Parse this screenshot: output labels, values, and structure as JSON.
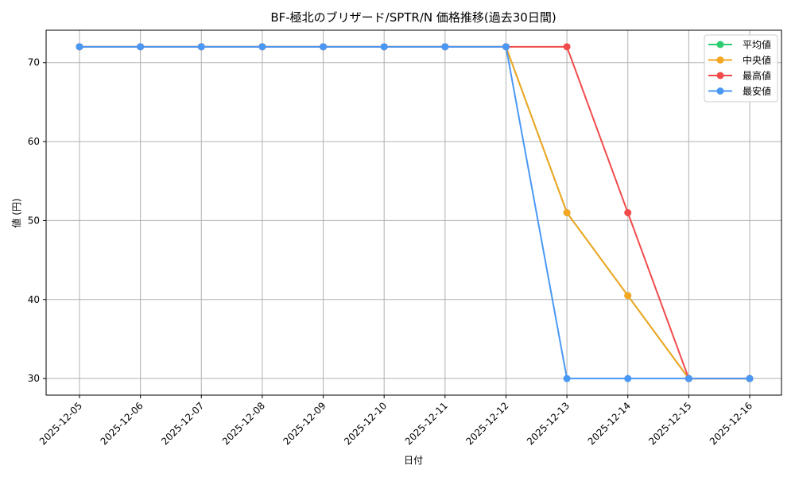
{
  "chart_data": {
    "type": "line",
    "title": "BF-極北のブリザード/SPTR/N 価格推移(過去30日間)",
    "xlabel": "日付",
    "ylabel": "値 (円)",
    "x": [
      "2025-12-05",
      "2025-12-06",
      "2025-12-07",
      "2025-12-08",
      "2025-12-09",
      "2025-12-10",
      "2025-12-11",
      "2025-12-12",
      "2025-12-13",
      "2025-12-14",
      "2025-12-15",
      "2025-12-16"
    ],
    "series": [
      {
        "name": "平均値",
        "color": "#2ecc71",
        "values": [
          72,
          72,
          72,
          72,
          72,
          72,
          72,
          72,
          51,
          40.5,
          30,
          30
        ]
      },
      {
        "name": "中央値",
        "color": "#f5a623",
        "values": [
          72,
          72,
          72,
          72,
          72,
          72,
          72,
          72,
          51,
          40.5,
          30,
          30
        ]
      },
      {
        "name": "最高値",
        "color": "#f24b4b",
        "values": [
          72,
          72,
          72,
          72,
          72,
          72,
          72,
          72,
          72,
          51,
          30,
          30
        ]
      },
      {
        "name": "最安値",
        "color": "#4a98f5",
        "values": [
          72,
          72,
          72,
          72,
          72,
          72,
          72,
          72,
          30,
          30,
          30,
          30
        ]
      }
    ],
    "yticks": [
      30,
      40,
      50,
      60,
      70
    ],
    "ylim": [
      27.9,
      74.1
    ],
    "grid": true,
    "legend_position": "upper right"
  }
}
